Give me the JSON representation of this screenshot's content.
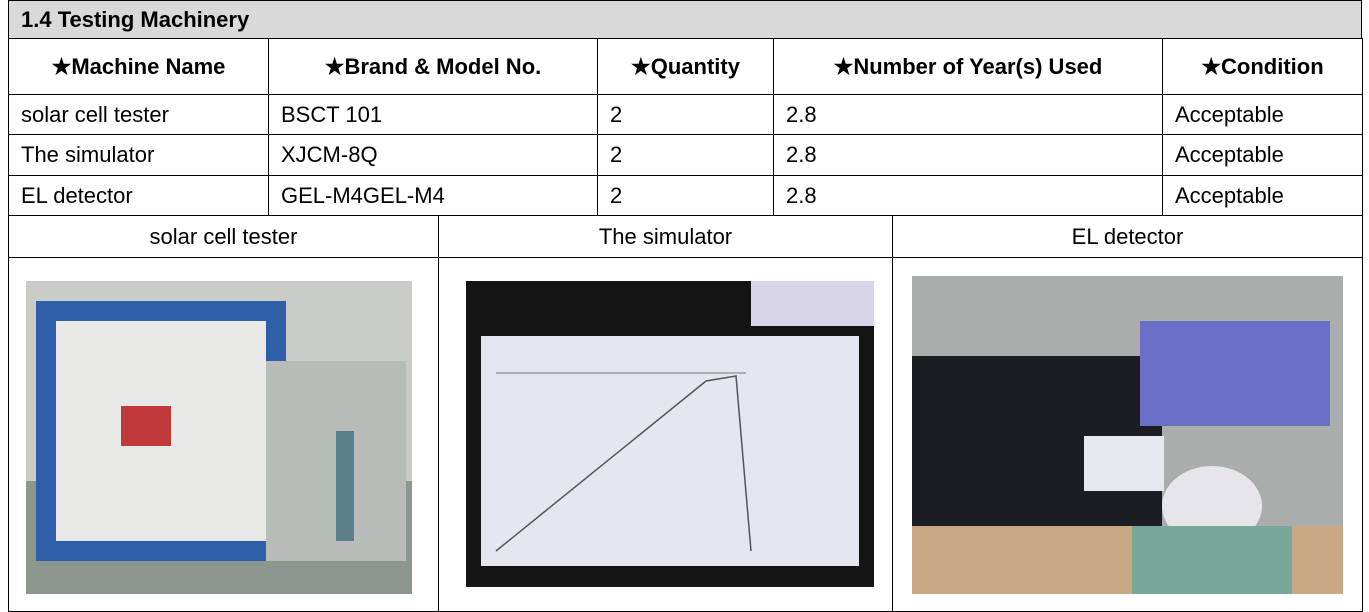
{
  "header": {
    "title": "1.4 Testing Machinery"
  },
  "table": {
    "columns": [
      "★Machine Name",
      "★Brand & Model No.",
      "★Quantity",
      "★Number of Year(s) Used",
      "★Condition"
    ],
    "rows": [
      [
        "solar cell tester",
        "BSCT 101",
        "2",
        "2.8",
        "Acceptable"
      ],
      [
        "The simulator",
        "XJCM-8Q",
        "2",
        "2.8",
        "Acceptable"
      ],
      [
        "EL detector",
        "GEL-M4GEL-M4",
        "2",
        "2.8",
        "Acceptable"
      ]
    ]
  },
  "photos": {
    "captions": [
      "solar cell tester",
      "The simulator",
      "EL detector"
    ]
  }
}
